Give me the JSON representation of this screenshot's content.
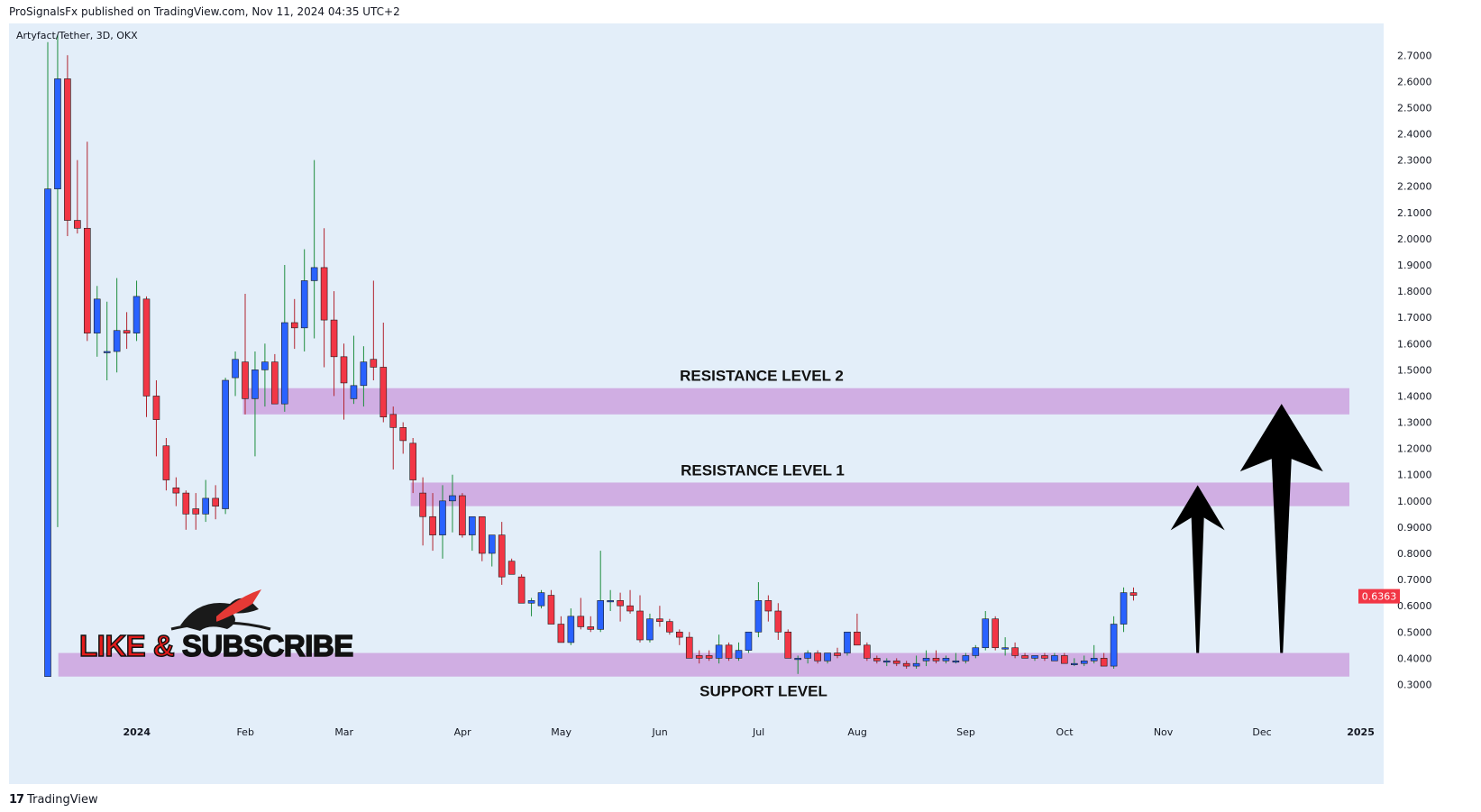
{
  "header": {
    "published": "ProSignalsFx published on TradingView.com, Nov 11, 2024 04:35 UTC+2"
  },
  "footer": {
    "brand": "TradingView",
    "logo_glyph": "17"
  },
  "colors": {
    "bg": "#e3eef9",
    "up": "#2962ff",
    "down": "#f23645",
    "zone": "#cda6e0",
    "arrow": "#000000"
  },
  "promo": {
    "text": "LIKE & SUBSCRIBE",
    "logo": "bull-bear-icon"
  },
  "chart_data": {
    "type": "candlestick",
    "symbol_label": "Artyfact/Tether, 3D, OKX",
    "last_price": "0.6363",
    "ylim": [
      0.25,
      2.78
    ],
    "y_ticks": [
      "2.7000",
      "2.6000",
      "2.5000",
      "2.4000",
      "2.3000",
      "2.2000",
      "2.1000",
      "2.0000",
      "1.9000",
      "1.8000",
      "1.7000",
      "1.6000",
      "1.5000",
      "1.4000",
      "1.3000",
      "1.2000",
      "1.1000",
      "1.0000",
      "0.9000",
      "0.8000",
      "0.7000",
      "0.6000",
      "0.5000",
      "0.4000",
      "0.3000"
    ],
    "x_ticks": [
      {
        "label": "2024",
        "i": 5
      },
      {
        "label": "Feb",
        "i": 16
      },
      {
        "label": "Mar",
        "i": 26
      },
      {
        "label": "Apr",
        "i": 38
      },
      {
        "label": "May",
        "i": 48
      },
      {
        "label": "Jun",
        "i": 58
      },
      {
        "label": "Jul",
        "i": 68
      },
      {
        "label": "Aug",
        "i": 78
      },
      {
        "label": "Sep",
        "i": 89
      },
      {
        "label": "Oct",
        "i": 99
      },
      {
        "label": "Nov",
        "i": 109
      },
      {
        "label": "Dec",
        "i": 119
      },
      {
        "label": "2025",
        "i": 129
      }
    ],
    "candle_count_axis": 132,
    "zones": [
      {
        "label": "RESISTANCE LEVEL 2",
        "low": 1.33,
        "high": 1.43,
        "from_i": 20.5
      },
      {
        "label": "RESISTANCE LEVEL 1",
        "low": 0.98,
        "high": 1.07,
        "from_i": 37.5
      },
      {
        "label": "SUPPORT LEVEL",
        "low": 0.33,
        "high": 0.42,
        "from_i": 1.8
      }
    ],
    "arrows": [
      {
        "i": 116.5,
        "from": 0.42,
        "to": 1.06
      },
      {
        "i": 125,
        "from": 0.42,
        "to": 1.37
      }
    ],
    "candles": [
      [
        0.33,
        2.75,
        0.33,
        2.19
      ],
      [
        2.19,
        2.78,
        0.9,
        2.61
      ],
      [
        2.61,
        2.7,
        2.01,
        2.07
      ],
      [
        2.07,
        2.3,
        2.02,
        2.04
      ],
      [
        2.04,
        2.37,
        1.61,
        1.64
      ],
      [
        1.64,
        1.82,
        1.55,
        1.77
      ],
      [
        1.57,
        1.76,
        1.46,
        1.57
      ],
      [
        1.57,
        1.85,
        1.49,
        1.65
      ],
      [
        1.65,
        1.72,
        1.58,
        1.64
      ],
      [
        1.64,
        1.84,
        1.61,
        1.78
      ],
      [
        1.77,
        1.78,
        1.32,
        1.4
      ],
      [
        1.4,
        1.46,
        1.17,
        1.31
      ],
      [
        1.21,
        1.24,
        1.04,
        1.08
      ],
      [
        1.05,
        1.09,
        0.98,
        1.03
      ],
      [
        1.03,
        1.04,
        0.89,
        0.95
      ],
      [
        0.97,
        1.03,
        0.89,
        0.95
      ],
      [
        0.95,
        1.08,
        0.92,
        1.01
      ],
      [
        1.01,
        1.06,
        0.93,
        0.98
      ],
      [
        0.97,
        1.47,
        0.95,
        1.46
      ],
      [
        1.47,
        1.57,
        1.4,
        1.54
      ],
      [
        1.53,
        1.79,
        1.33,
        1.39
      ],
      [
        1.39,
        1.57,
        1.17,
        1.5
      ],
      [
        1.5,
        1.6,
        1.36,
        1.53
      ],
      [
        1.53,
        1.56,
        1.37,
        1.37
      ],
      [
        1.37,
        1.9,
        1.34,
        1.68
      ],
      [
        1.68,
        1.77,
        1.58,
        1.66
      ],
      [
        1.66,
        1.96,
        1.57,
        1.84
      ],
      [
        1.84,
        2.3,
        1.62,
        1.89
      ],
      [
        1.89,
        2.04,
        1.51,
        1.69
      ],
      [
        1.69,
        1.8,
        1.4,
        1.55
      ],
      [
        1.55,
        1.6,
        1.31,
        1.45
      ],
      [
        1.39,
        1.63,
        1.37,
        1.44
      ],
      [
        1.44,
        1.59,
        1.36,
        1.53
      ],
      [
        1.54,
        1.84,
        1.46,
        1.51
      ],
      [
        1.51,
        1.68,
        1.3,
        1.32
      ],
      [
        1.33,
        1.36,
        1.12,
        1.28
      ],
      [
        1.28,
        1.3,
        1.18,
        1.23
      ],
      [
        1.22,
        1.24,
        1.03,
        1.08
      ],
      [
        1.03,
        1.09,
        0.83,
        0.94
      ],
      [
        0.94,
        1.03,
        0.81,
        0.87
      ],
      [
        0.87,
        1.06,
        0.78,
        1.0
      ],
      [
        1.0,
        1.1,
        0.88,
        1.02
      ],
      [
        1.02,
        1.03,
        0.86,
        0.87
      ],
      [
        0.87,
        0.94,
        0.81,
        0.94
      ],
      [
        0.94,
        0.93,
        0.77,
        0.8
      ],
      [
        0.8,
        0.85,
        0.75,
        0.87
      ],
      [
        0.87,
        0.92,
        0.68,
        0.71
      ],
      [
        0.77,
        0.78,
        0.72,
        0.72
      ],
      [
        0.71,
        0.72,
        0.61,
        0.61
      ],
      [
        0.61,
        0.63,
        0.56,
        0.62
      ],
      [
        0.6,
        0.66,
        0.59,
        0.65
      ],
      [
        0.64,
        0.66,
        0.53,
        0.53
      ],
      [
        0.53,
        0.56,
        0.46,
        0.46
      ],
      [
        0.46,
        0.59,
        0.45,
        0.56
      ],
      [
        0.56,
        0.63,
        0.51,
        0.52
      ],
      [
        0.52,
        0.56,
        0.5,
        0.51
      ],
      [
        0.51,
        0.81,
        0.5,
        0.62
      ],
      [
        0.62,
        0.66,
        0.58,
        0.62
      ],
      [
        0.62,
        0.65,
        0.54,
        0.6
      ],
      [
        0.6,
        0.66,
        0.57,
        0.58
      ],
      [
        0.58,
        0.64,
        0.46,
        0.47
      ],
      [
        0.47,
        0.57,
        0.46,
        0.55
      ],
      [
        0.55,
        0.6,
        0.52,
        0.54
      ],
      [
        0.54,
        0.55,
        0.49,
        0.5
      ],
      [
        0.5,
        0.51,
        0.45,
        0.48
      ],
      [
        0.48,
        0.5,
        0.4,
        0.4
      ],
      [
        0.41,
        0.43,
        0.38,
        0.4
      ],
      [
        0.41,
        0.43,
        0.39,
        0.4
      ],
      [
        0.4,
        0.49,
        0.38,
        0.45
      ],
      [
        0.45,
        0.46,
        0.39,
        0.4
      ],
      [
        0.4,
        0.46,
        0.39,
        0.43
      ],
      [
        0.43,
        0.5,
        0.42,
        0.5
      ],
      [
        0.5,
        0.69,
        0.48,
        0.62
      ],
      [
        0.62,
        0.64,
        0.54,
        0.58
      ],
      [
        0.58,
        0.61,
        0.47,
        0.5
      ],
      [
        0.5,
        0.51,
        0.4,
        0.4
      ],
      [
        0.4,
        0.41,
        0.34,
        0.4
      ],
      [
        0.4,
        0.43,
        0.38,
        0.42
      ],
      [
        0.42,
        0.43,
        0.38,
        0.39
      ],
      [
        0.39,
        0.42,
        0.38,
        0.42
      ],
      [
        0.42,
        0.44,
        0.4,
        0.41
      ],
      [
        0.42,
        0.5,
        0.41,
        0.5
      ],
      [
        0.5,
        0.57,
        0.45,
        0.45
      ],
      [
        0.45,
        0.46,
        0.39,
        0.4
      ],
      [
        0.4,
        0.41,
        0.38,
        0.39
      ],
      [
        0.39,
        0.4,
        0.37,
        0.39
      ],
      [
        0.39,
        0.4,
        0.37,
        0.38
      ],
      [
        0.38,
        0.39,
        0.36,
        0.37
      ],
      [
        0.37,
        0.41,
        0.36,
        0.38
      ],
      [
        0.39,
        0.43,
        0.37,
        0.4
      ],
      [
        0.4,
        0.43,
        0.38,
        0.39
      ],
      [
        0.39,
        0.41,
        0.38,
        0.4
      ],
      [
        0.39,
        0.42,
        0.38,
        0.39
      ],
      [
        0.39,
        0.42,
        0.38,
        0.41
      ],
      [
        0.41,
        0.45,
        0.4,
        0.44
      ],
      [
        0.44,
        0.58,
        0.43,
        0.55
      ],
      [
        0.55,
        0.56,
        0.43,
        0.44
      ],
      [
        0.44,
        0.48,
        0.41,
        0.44
      ],
      [
        0.44,
        0.46,
        0.4,
        0.41
      ],
      [
        0.41,
        0.42,
        0.4,
        0.4
      ],
      [
        0.4,
        0.41,
        0.39,
        0.41
      ],
      [
        0.41,
        0.42,
        0.39,
        0.4
      ],
      [
        0.39,
        0.42,
        0.39,
        0.41
      ],
      [
        0.41,
        0.42,
        0.38,
        0.38
      ],
      [
        0.38,
        0.4,
        0.37,
        0.38
      ],
      [
        0.38,
        0.41,
        0.37,
        0.39
      ],
      [
        0.39,
        0.45,
        0.38,
        0.4
      ],
      [
        0.4,
        0.42,
        0.37,
        0.37
      ],
      [
        0.37,
        0.56,
        0.36,
        0.53
      ],
      [
        0.53,
        0.67,
        0.5,
        0.65
      ],
      [
        0.65,
        0.67,
        0.62,
        0.64
      ]
    ]
  }
}
